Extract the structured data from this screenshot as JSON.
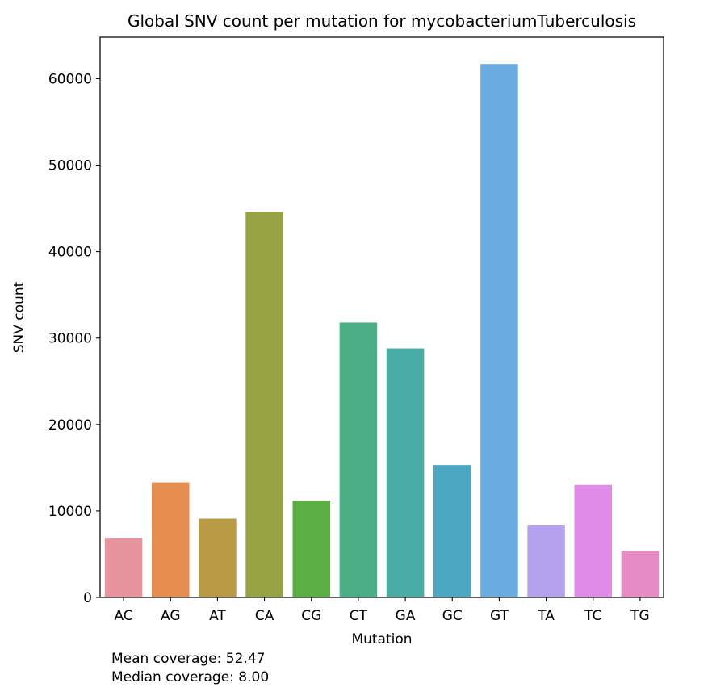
{
  "chart_data": {
    "type": "bar",
    "title": "Global SNV count per mutation for mycobacteriumTuberculosis",
    "xlabel": "Mutation",
    "ylabel": "SNV count",
    "categories": [
      "AC",
      "AG",
      "AT",
      "CA",
      "CG",
      "CT",
      "GA",
      "GC",
      "GT",
      "TA",
      "TC",
      "TG"
    ],
    "values": [
      6900,
      13300,
      9100,
      44600,
      11200,
      31800,
      28800,
      15300,
      61700,
      8400,
      13000,
      5400
    ],
    "colors": [
      "#E8949F",
      "#E58E4F",
      "#B99A45",
      "#98A444",
      "#5BAE44",
      "#4AAF87",
      "#4AACA7",
      "#4CA8C2",
      "#6AACE2",
      "#B4A3EC",
      "#DF8BE7",
      "#E78BC5"
    ],
    "yticks": [
      0,
      10000,
      20000,
      30000,
      40000,
      50000,
      60000
    ],
    "ylim": [
      0,
      64800
    ],
    "grid": false,
    "legend": "none"
  },
  "notes": {
    "mean": "Mean coverage: 52.47",
    "median": "Median coverage: 8.00"
  }
}
